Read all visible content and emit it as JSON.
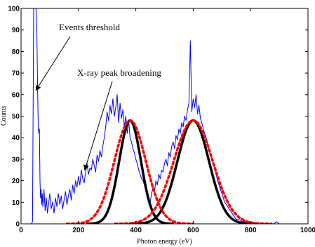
{
  "chart_data": {
    "type": "line",
    "xlabel": "Photon energy (eV)",
    "ylabel": "Counts",
    "xlim": [
      0,
      1000
    ],
    "ylim": [
      0,
      100
    ],
    "xticks": [
      0,
      200,
      400,
      600,
      800,
      1000
    ],
    "yticks": [
      0,
      10,
      20,
      30,
      40,
      50,
      60,
      70,
      80,
      90,
      100
    ],
    "grid": false,
    "colors": {
      "spectrum": "#0000ff",
      "fit": "#000000",
      "broadened": "#ff0000"
    },
    "series": [
      {
        "style": "blue-noisy-line",
        "x": [
          30,
          33,
          36,
          40,
          44,
          48,
          52,
          55,
          58,
          60,
          62,
          64,
          66,
          68,
          70,
          72,
          74,
          76,
          78,
          80,
          84,
          88,
          92,
          96,
          100,
          105,
          110,
          115,
          120,
          125,
          130,
          135,
          140,
          145,
          150,
          155,
          160,
          165,
          170,
          175,
          180,
          185,
          190,
          195,
          200,
          205,
          210,
          215,
          220,
          225,
          230,
          235,
          240,
          245,
          250,
          255,
          260,
          265,
          270,
          275,
          280,
          285,
          290,
          295,
          300,
          305,
          310,
          315,
          320,
          325,
          330,
          335,
          340,
          345,
          350,
          355,
          360,
          365,
          370,
          375,
          380,
          385,
          390,
          395,
          400,
          405,
          410,
          415,
          420,
          425,
          430,
          435,
          440,
          445,
          450,
          455,
          460,
          465,
          470,
          475,
          480,
          485,
          490,
          495,
          500,
          505,
          510,
          515,
          520,
          525,
          530,
          535,
          540,
          545,
          550,
          555,
          560,
          565,
          570,
          575,
          580,
          585,
          590,
          595,
          600,
          605,
          610,
          615,
          620,
          625,
          630,
          635,
          640,
          645,
          650,
          655,
          660,
          665,
          670,
          675,
          680,
          685,
          690,
          695,
          700,
          705,
          710,
          715,
          720,
          725,
          730,
          735,
          740,
          745,
          750,
          760,
          770,
          780,
          790,
          800,
          820,
          850,
          880,
          890,
          900,
          920,
          950,
          980,
          1000
        ],
        "y": [
          0,
          0,
          0,
          1,
          100,
          100,
          100,
          90,
          60,
          45,
          42,
          44,
          20,
          12,
          16,
          9,
          14,
          8,
          11,
          16,
          6,
          12,
          5,
          9,
          14,
          7,
          10,
          5,
          12,
          8,
          14,
          9,
          13,
          7,
          11,
          15,
          9,
          13,
          16,
          11,
          18,
          14,
          20,
          17,
          22,
          18,
          25,
          21,
          19,
          24,
          28,
          23,
          26,
          25,
          30,
          27,
          24,
          32,
          29,
          34,
          31,
          36,
          40,
          45,
          52,
          48,
          55,
          51,
          58,
          50,
          54,
          60,
          47,
          56,
          49,
          53,
          45,
          50,
          42,
          48,
          40,
          38,
          35,
          33,
          30,
          28,
          25,
          23,
          21,
          20,
          18,
          15,
          13,
          11,
          10,
          14,
          17,
          15,
          20,
          18,
          23,
          21,
          25,
          24,
          28,
          30,
          27,
          33,
          31,
          36,
          38,
          35,
          41,
          39,
          44,
          42,
          47,
          45,
          50,
          48,
          53,
          56,
          85,
          52,
          58,
          54,
          60,
          51,
          55,
          49,
          47,
          44,
          42,
          40,
          37,
          35,
          32,
          30,
          28,
          25,
          23,
          20,
          18,
          16,
          14,
          12,
          10,
          9,
          8,
          7,
          6,
          5,
          4,
          3,
          2,
          2,
          1,
          1,
          0,
          1,
          0,
          0,
          0,
          1,
          0,
          0,
          0,
          0,
          0
        ]
      },
      {
        "style": "black-gaussian",
        "amplitude": 48,
        "center": 380,
        "sigma": 38
      },
      {
        "style": "black-gaussian",
        "amplitude": 48,
        "center": 600,
        "sigma": 55
      },
      {
        "style": "red-dotted-gaussian",
        "amplitude": 48,
        "center": 380,
        "sigma": 55
      },
      {
        "style": "red-dotted-gaussian",
        "amplitude": 48,
        "center": 600,
        "sigma": 68
      }
    ],
    "annotations": [
      {
        "text": "Events threshold",
        "arrow_to": [
          52,
          62
        ]
      },
      {
        "text": "X-ray peak broadening",
        "arrow_to": [
          222,
          25
        ]
      }
    ]
  }
}
